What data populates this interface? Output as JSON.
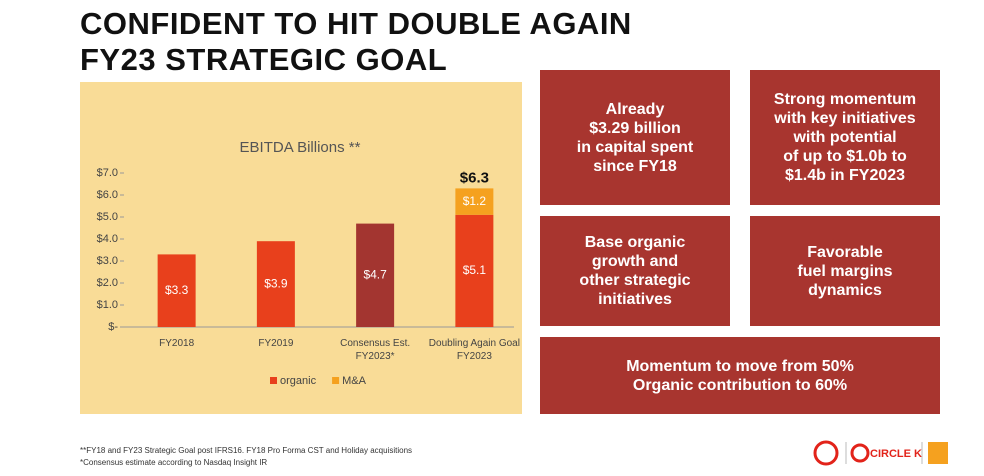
{
  "header": {
    "title": [
      "CONFIDENT TO HIT DOUBLE AGAIN",
      "FY23 STRATEGIC GOAL"
    ]
  },
  "chart_data": {
    "type": "stacked-bar",
    "title": "EBITDA Billions **",
    "categories": [
      "FY2018",
      "FY2019",
      "Consensus Est.\nFY2023*",
      "Doubling Again Goal\nFY2023"
    ],
    "series": [
      {
        "name": "organic",
        "color": "#e8401c",
        "colors": [
          "#e8401c",
          "#e8401c",
          "#a33530",
          "#e8401c"
        ],
        "values": [
          3.3,
          3.9,
          4.7,
          5.1
        ],
        "value_labels": [
          "$3.3",
          "$3.9",
          "$4.7",
          "$5.1"
        ]
      },
      {
        "name": "M&A",
        "color": "#f5a11f",
        "values": [
          null,
          null,
          null,
          1.2
        ],
        "value_labels": [
          null,
          null,
          null,
          "$1.2"
        ]
      }
    ],
    "totals": [
      null,
      null,
      null,
      6.3
    ],
    "total_labels": [
      null,
      null,
      null,
      "$6.3"
    ],
    "ylim": [
      0,
      7
    ],
    "yticks": [
      {
        "value": 0,
        "label": "$-"
      },
      {
        "value": 1,
        "label": "$1.0"
      },
      {
        "value": 2,
        "label": "$2.0"
      },
      {
        "value": 3,
        "label": "$3.0"
      },
      {
        "value": 4,
        "label": "$4.0"
      },
      {
        "value": 5,
        "label": "$5.0"
      },
      {
        "value": 6,
        "label": "$6.0"
      },
      {
        "value": 7,
        "label": "$7.0"
      }
    ],
    "legend": "bottom"
  },
  "boxes": [
    "Already\n$3.29 billion\nin capital spent\nsince FY18",
    "Strong momentum\nwith key initiatives\nwith potential\nof up to $1.0b to\n$1.4b in FY2023",
    "Base organic\ngrowth and\nother strategic\ninitiatives",
    "Favorable\nfuel margins\ndynamics",
    "Momentum to move from 50%\nOrganic contribution to 60%"
  ],
  "footnotes": [
    "**FY18 and FY23 Strategic Goal post IFRS16. FY18 Pro Forma CST and Holiday acquisitions",
    "*Consensus estimate according to Nasdaq Insight IR"
  ],
  "logos": [
    "CIRCLE K"
  ]
}
